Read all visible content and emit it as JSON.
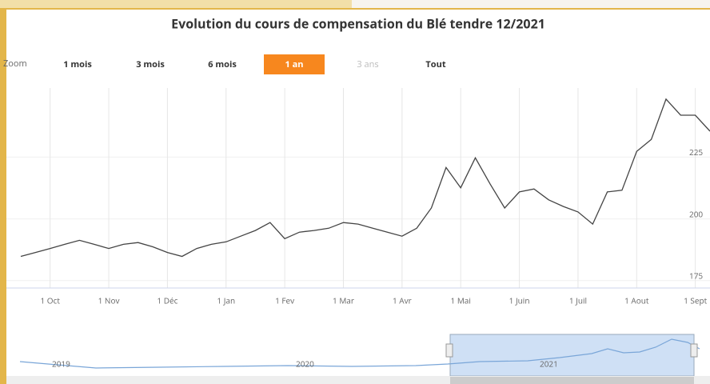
{
  "chart_data": {
    "type": "line",
    "title": "Evolution du cours de compensation du Blé tendre 12/2021",
    "range_selector": {
      "label": "Zoom",
      "buttons": [
        "1 mois",
        "3 mois",
        "6 mois",
        "1 an",
        "3 ans",
        "Tout"
      ],
      "selected": 3,
      "disabled": [
        4
      ]
    },
    "categories": [
      null,
      null,
      "1 Oct",
      null,
      null,
      null,
      "1 Nov",
      null,
      null,
      null,
      "1 Déc",
      null,
      null,
      null,
      "1 Jan",
      null,
      null,
      null,
      "1 Fev",
      null,
      null,
      null,
      "1 Mar",
      null,
      null,
      null,
      "1 Avr",
      null,
      null,
      null,
      "1 Mai",
      null,
      null,
      null,
      "1 Juin",
      null,
      null,
      null,
      "1 Juil",
      null,
      null,
      null,
      "1 Aout",
      null,
      null,
      null,
      "1 Sept",
      null
    ],
    "values": [
      184.8,
      186.4,
      188,
      189.7,
      191.3,
      189.7,
      188,
      189.7,
      190.4,
      188.7,
      186.4,
      184.8,
      188,
      189.7,
      190.7,
      193,
      195.3,
      198.5,
      192,
      194.6,
      195.3,
      196.2,
      198.5,
      197.9,
      196.2,
      194.6,
      193,
      196.2,
      204.4,
      220.8,
      212.6,
      224.7,
      214.2,
      204.4,
      210.9,
      212.1,
      207.7,
      205,
      202.8,
      197.9,
      210.9,
      211.6,
      227.3,
      232.2,
      248.5,
      242,
      242,
      235.5
    ],
    "color": "#444444",
    "ylim": [
      172,
      253
    ],
    "yticks": [
      175,
      200,
      225
    ],
    "grid": true,
    "navigator_labels": [
      "2019",
      "2020",
      "2021"
    ]
  }
}
